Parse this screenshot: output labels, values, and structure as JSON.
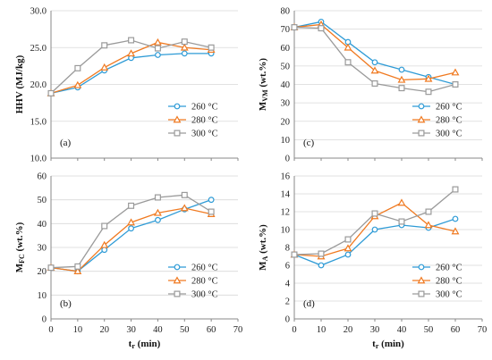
{
  "colors": {
    "s260": "#2e9bd6",
    "s280": "#f07a21",
    "s300": "#9a9a9a",
    "axis": "#888888",
    "grid": "#d9d9d9"
  },
  "chart_data": [
    {
      "type": "line",
      "panel_label": "(a)",
      "ylabel": "HHV (MJ/kg)",
      "xlabel": "",
      "ylim": [
        10.0,
        30.0
      ],
      "yticks": [
        "10.0",
        "15.0",
        "20.0",
        "25.0",
        "30.0"
      ],
      "xlim": [
        0,
        70
      ],
      "xticks": [
        "",
        "",
        "",
        "",
        "",
        "",
        "",
        ""
      ],
      "grid": "horizontal",
      "legend": "bottom-right",
      "x": [
        0,
        10,
        20,
        30,
        40,
        50,
        60
      ],
      "series": [
        {
          "name": "260 °C",
          "marker": "circle",
          "values": [
            18.8,
            19.6,
            21.9,
            23.6,
            24.0,
            24.2,
            24.2
          ]
        },
        {
          "name": "280 °C",
          "marker": "triangle",
          "values": [
            18.8,
            19.9,
            22.3,
            24.2,
            25.7,
            25.0,
            24.7
          ]
        },
        {
          "name": "300 °C",
          "marker": "square",
          "values": [
            18.8,
            22.2,
            25.3,
            26.0,
            24.9,
            25.8,
            25.0
          ]
        }
      ]
    },
    {
      "type": "line",
      "panel_label": "(c)",
      "ylabel": "M_VM (wt.%)",
      "xlabel": "",
      "ylim": [
        0,
        80
      ],
      "yticks": [
        "0",
        "10",
        "20",
        "30",
        "40",
        "50",
        "60",
        "70",
        "80"
      ],
      "xlim": [
        0,
        70
      ],
      "xticks": [
        "",
        "",
        "",
        "",
        "",
        "",
        "",
        ""
      ],
      "grid": "horizontal",
      "legend": "bottom-right",
      "x": [
        0,
        10,
        20,
        30,
        40,
        50,
        60
      ],
      "series": [
        {
          "name": "260 °C",
          "marker": "circle",
          "values": [
            71,
            74,
            63,
            52,
            48,
            44,
            40
          ]
        },
        {
          "name": "280 °C",
          "marker": "triangle",
          "values": [
            71,
            72.5,
            60,
            47.5,
            42.5,
            43,
            46.5
          ]
        },
        {
          "name": "300 °C",
          "marker": "square",
          "values": [
            71,
            70.5,
            52,
            40.5,
            38,
            36,
            40
          ]
        }
      ]
    },
    {
      "type": "line",
      "panel_label": "(b)",
      "ylabel": "M_FC (wt.%)",
      "xlabel": "t_r (min)",
      "ylim": [
        0,
        60
      ],
      "yticks": [
        "0",
        "10",
        "20",
        "30",
        "40",
        "50",
        "60"
      ],
      "xlim": [
        0,
        70
      ],
      "xticks": [
        "0",
        "10",
        "20",
        "30",
        "40",
        "50",
        "60",
        "70"
      ],
      "grid": "horizontal",
      "legend": "bottom-right",
      "x": [
        0,
        10,
        20,
        30,
        40,
        50,
        60
      ],
      "series": [
        {
          "name": "260 °C",
          "marker": "circle",
          "values": [
            21.5,
            20,
            29,
            38,
            41.5,
            46,
            50
          ]
        },
        {
          "name": "280 °C",
          "marker": "triangle",
          "values": [
            21.5,
            20,
            31,
            40.5,
            44.5,
            46.5,
            44
          ]
        },
        {
          "name": "300 °C",
          "marker": "square",
          "values": [
            21.5,
            22,
            39,
            47.5,
            51,
            52,
            45
          ]
        }
      ]
    },
    {
      "type": "line",
      "panel_label": "(d)",
      "ylabel": "M_A (wt.%)",
      "xlabel": "t_r (min)",
      "ylim": [
        0,
        16
      ],
      "yticks": [
        "0",
        "2",
        "4",
        "6",
        "8",
        "10",
        "12",
        "14",
        "16"
      ],
      "xlim": [
        0,
        70
      ],
      "xticks": [
        "0",
        "10",
        "20",
        "30",
        "40",
        "50",
        "60",
        "70"
      ],
      "grid": "horizontal",
      "legend": "bottom-right",
      "x": [
        0,
        10,
        20,
        30,
        40,
        50,
        60
      ],
      "series": [
        {
          "name": "260 °C",
          "marker": "circle",
          "values": [
            7.2,
            6.0,
            7.2,
            10.0,
            10.5,
            10.2,
            11.2
          ]
        },
        {
          "name": "280 °C",
          "marker": "triangle",
          "values": [
            7.2,
            7.0,
            7.9,
            11.5,
            13.0,
            10.5,
            9.8
          ]
        },
        {
          "name": "300 °C",
          "marker": "square",
          "values": [
            7.2,
            7.3,
            8.9,
            11.8,
            10.9,
            12.0,
            14.5
          ]
        }
      ]
    }
  ]
}
